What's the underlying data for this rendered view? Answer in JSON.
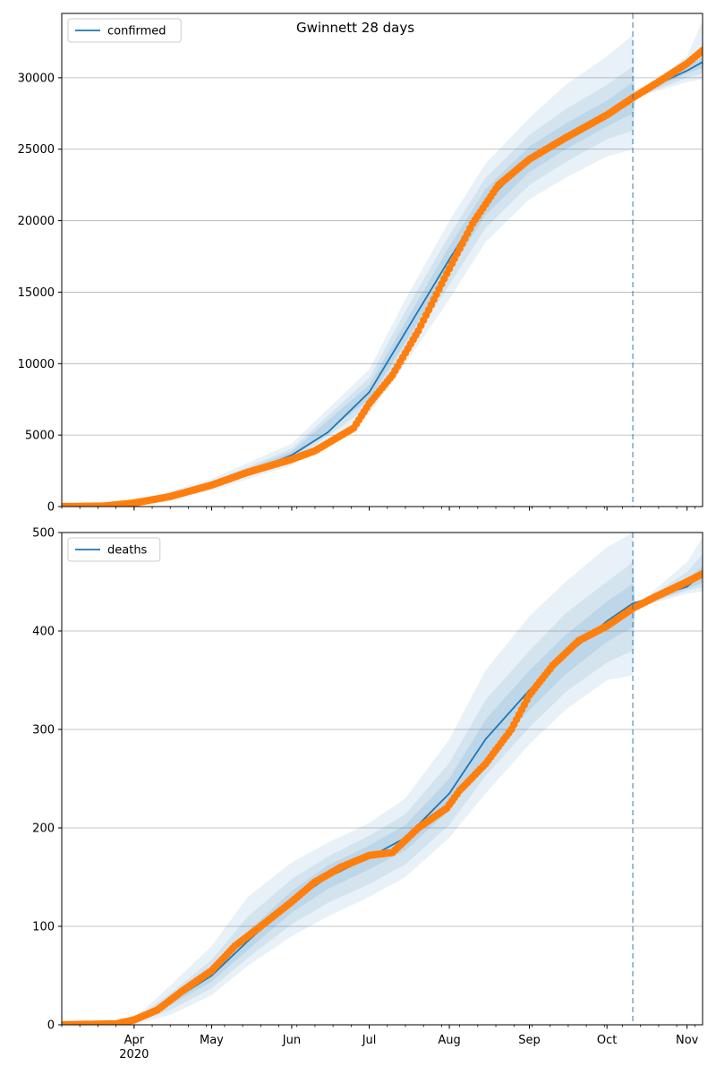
{
  "title": "Gwinnett 28 days",
  "colors": {
    "model": "#1f77b4",
    "observed": "#ff7f0e",
    "band": "#1f77b4",
    "grid": "#b0b0b0",
    "forecast_line": "#1f77b4"
  },
  "chart_data": [
    {
      "type": "line",
      "title": "Gwinnett 28 days",
      "xlabel": "",
      "ylabel": "",
      "x_ticks": [
        "2020-04-01",
        "2020-05-01",
        "2020-06-01",
        "2020-07-01",
        "2020-08-01",
        "2020-09-01",
        "2020-10-01",
        "2020-11-01"
      ],
      "x_tick_labels": [
        "Apr\n2020",
        "May",
        "Jun",
        "Jul",
        "Aug",
        "Sep",
        "Oct",
        "Nov"
      ],
      "xlim": [
        "2020-03-04",
        "2020-11-07"
      ],
      "ylim": [
        0,
        34500
      ],
      "y_ticks": [
        0,
        5000,
        10000,
        15000,
        20000,
        25000,
        30000
      ],
      "grid": "y",
      "legend": "top-left",
      "forecast_start": "2020-10-11",
      "series": [
        {
          "name": "confirmed",
          "kind": "model",
          "points": [
            [
              "2020-03-04",
              0
            ],
            [
              "2020-03-20",
              50
            ],
            [
              "2020-04-01",
              200
            ],
            [
              "2020-04-15",
              700
            ],
            [
              "2020-05-01",
              1500
            ],
            [
              "2020-05-15",
              2400
            ],
            [
              "2020-06-01",
              3600
            ],
            [
              "2020-06-15",
              5200
            ],
            [
              "2020-07-01",
              8000
            ],
            [
              "2020-07-15",
              12200
            ],
            [
              "2020-08-01",
              17300
            ],
            [
              "2020-08-15",
              21300
            ],
            [
              "2020-09-01",
              24300
            ],
            [
              "2020-09-15",
              25900
            ],
            [
              "2020-10-01",
              27500
            ],
            [
              "2020-10-11",
              28600
            ],
            [
              "2020-10-20",
              29500
            ],
            [
              "2020-11-01",
              30500
            ],
            [
              "2020-11-07",
              31100
            ]
          ]
        },
        {
          "name": "",
          "kind": "observed",
          "points": [
            [
              "2020-03-04",
              0
            ],
            [
              "2020-03-20",
              30
            ],
            [
              "2020-04-01",
              250
            ],
            [
              "2020-04-15",
              700
            ],
            [
              "2020-05-01",
              1500
            ],
            [
              "2020-05-15",
              2400
            ],
            [
              "2020-06-01",
              3300
            ],
            [
              "2020-06-10",
              3900
            ],
            [
              "2020-06-25",
              5500
            ],
            [
              "2020-07-01",
              7200
            ],
            [
              "2020-07-10",
              9200
            ],
            [
              "2020-07-20",
              12300
            ],
            [
              "2020-07-31",
              16300
            ],
            [
              "2020-08-10",
              19800
            ],
            [
              "2020-08-20",
              22500
            ],
            [
              "2020-09-01",
              24300
            ],
            [
              "2020-09-15",
              25800
            ],
            [
              "2020-10-01",
              27400
            ],
            [
              "2020-10-11",
              28600
            ],
            [
              "2020-10-20",
              29600
            ],
            [
              "2020-11-01",
              31000
            ],
            [
              "2020-11-07",
              31900
            ]
          ]
        }
      ],
      "bands": [
        {
          "level": "outer",
          "points": [
            [
              "2020-03-04",
              0,
              0
            ],
            [
              "2020-04-01",
              100,
              320
            ],
            [
              "2020-05-01",
              1100,
              1950
            ],
            [
              "2020-06-01",
              2900,
              4400
            ],
            [
              "2020-07-01",
              6500,
              9600
            ],
            [
              "2020-07-15",
              10000,
              14500
            ],
            [
              "2020-08-01",
              14500,
              20000
            ],
            [
              "2020-08-15",
              18500,
              24000
            ],
            [
              "2020-09-01",
              21500,
              27200
            ],
            [
              "2020-09-15",
              23000,
              29500
            ],
            [
              "2020-10-01",
              24500,
              31500
            ],
            [
              "2020-10-11",
              25000,
              33000
            ],
            [
              "2020-10-12",
              28600,
              28700
            ],
            [
              "2020-11-01",
              29700,
              31500
            ],
            [
              "2020-11-07",
              29900,
              34000
            ]
          ]
        },
        {
          "level": "middle",
          "points": [
            [
              "2020-03-04",
              0,
              0
            ],
            [
              "2020-04-01",
              140,
              270
            ],
            [
              "2020-05-01",
              1250,
              1750
            ],
            [
              "2020-06-01",
              3150,
              4050
            ],
            [
              "2020-07-01",
              7000,
              9000
            ],
            [
              "2020-07-15",
              10800,
              13700
            ],
            [
              "2020-08-01",
              15500,
              19000
            ],
            [
              "2020-08-15",
              19500,
              23000
            ],
            [
              "2020-09-01",
              22500,
              26000
            ],
            [
              "2020-09-15",
              24100,
              27800
            ],
            [
              "2020-10-01",
              25700,
              29500
            ],
            [
              "2020-10-11",
              26300,
              30800
            ],
            [
              "2020-10-12",
              28600,
              28700
            ],
            [
              "2020-11-01",
              30000,
              31000
            ],
            [
              "2020-11-07",
              30300,
              32000
            ]
          ]
        },
        {
          "level": "inner",
          "points": [
            [
              "2020-03-04",
              0,
              0
            ],
            [
              "2020-04-01",
              170,
              230
            ],
            [
              "2020-05-01",
              1380,
              1620
            ],
            [
              "2020-06-01",
              3350,
              3850
            ],
            [
              "2020-07-01",
              7500,
              8500
            ],
            [
              "2020-07-15",
              11500,
              12900
            ],
            [
              "2020-08-01",
              16400,
              18200
            ],
            [
              "2020-08-15",
              20400,
              22200
            ],
            [
              "2020-09-01",
              23400,
              25200
            ],
            [
              "2020-09-15",
              25000,
              26800
            ],
            [
              "2020-10-01",
              26600,
              28400
            ],
            [
              "2020-10-11",
              27500,
              29700
            ],
            [
              "2020-10-12",
              28600,
              28700
            ],
            [
              "2020-11-01",
              30300,
              30700
            ],
            [
              "2020-11-07",
              30700,
              31500
            ]
          ]
        }
      ]
    },
    {
      "type": "line",
      "title": "",
      "xlabel": "",
      "ylabel": "",
      "x_ticks": [
        "2020-04-01",
        "2020-05-01",
        "2020-06-01",
        "2020-07-01",
        "2020-08-01",
        "2020-09-01",
        "2020-10-01",
        "2020-11-01"
      ],
      "x_tick_labels": [
        "Apr\n2020",
        "May",
        "Jun",
        "Jul",
        "Aug",
        "Sep",
        "Oct",
        "Nov"
      ],
      "xlim": [
        "2020-03-04",
        "2020-11-07"
      ],
      "ylim": [
        0,
        500
      ],
      "y_ticks": [
        0,
        100,
        200,
        300,
        400,
        500
      ],
      "grid": "y",
      "legend": "top-left",
      "forecast_start": "2020-10-11",
      "series": [
        {
          "name": "deaths",
          "kind": "model",
          "points": [
            [
              "2020-03-04",
              0
            ],
            [
              "2020-04-01",
              3
            ],
            [
              "2020-04-10",
              15
            ],
            [
              "2020-05-01",
              50
            ],
            [
              "2020-05-15",
              85
            ],
            [
              "2020-06-01",
              125
            ],
            [
              "2020-06-15",
              150
            ],
            [
              "2020-07-01",
              170
            ],
            [
              "2020-07-15",
              190
            ],
            [
              "2020-08-01",
              235
            ],
            [
              "2020-08-15",
              290
            ],
            [
              "2020-09-01",
              340
            ],
            [
              "2020-09-15",
              375
            ],
            [
              "2020-10-01",
              410
            ],
            [
              "2020-10-11",
              428
            ],
            [
              "2020-11-01",
              445
            ],
            [
              "2020-11-07",
              458
            ]
          ]
        },
        {
          "name": "",
          "kind": "observed",
          "points": [
            [
              "2020-03-04",
              0
            ],
            [
              "2020-03-25",
              1
            ],
            [
              "2020-04-01",
              5
            ],
            [
              "2020-04-10",
              15
            ],
            [
              "2020-04-20",
              35
            ],
            [
              "2020-05-01",
              55
            ],
            [
              "2020-05-10",
              80
            ],
            [
              "2020-05-20",
              100
            ],
            [
              "2020-06-01",
              125
            ],
            [
              "2020-06-10",
              145
            ],
            [
              "2020-06-20",
              160
            ],
            [
              "2020-07-01",
              172
            ],
            [
              "2020-07-10",
              175
            ],
            [
              "2020-07-20",
              200
            ],
            [
              "2020-07-31",
              220
            ],
            [
              "2020-08-05",
              238
            ],
            [
              "2020-08-15",
              265
            ],
            [
              "2020-08-25",
              300
            ],
            [
              "2020-09-01",
              335
            ],
            [
              "2020-09-10",
              365
            ],
            [
              "2020-09-20",
              390
            ],
            [
              "2020-10-01",
              405
            ],
            [
              "2020-10-11",
              423
            ],
            [
              "2020-10-20",
              435
            ],
            [
              "2020-11-01",
              450
            ],
            [
              "2020-11-07",
              458
            ]
          ]
        }
      ],
      "bands": [
        {
          "level": "outer",
          "points": [
            [
              "2020-03-04",
              0,
              0
            ],
            [
              "2020-04-01",
              0,
              6
            ],
            [
              "2020-04-15",
              10,
              40
            ],
            [
              "2020-05-01",
              30,
              80
            ],
            [
              "2020-05-15",
              60,
              130
            ],
            [
              "2020-06-01",
              90,
              165
            ],
            [
              "2020-06-15",
              110,
              185
            ],
            [
              "2020-07-01",
              130,
              205
            ],
            [
              "2020-07-15",
              150,
              230
            ],
            [
              "2020-08-01",
              190,
              290
            ],
            [
              "2020-08-15",
              235,
              360
            ],
            [
              "2020-09-01",
              285,
              415
            ],
            [
              "2020-09-15",
              320,
              450
            ],
            [
              "2020-10-01",
              350,
              485
            ],
            [
              "2020-10-11",
              355,
              500
            ],
            [
              "2020-10-12",
              423,
              425
            ],
            [
              "2020-11-01",
              438,
              470
            ],
            [
              "2020-11-07",
              440,
              495
            ]
          ]
        },
        {
          "level": "middle",
          "points": [
            [
              "2020-03-04",
              0,
              0
            ],
            [
              "2020-04-01",
              1,
              5
            ],
            [
              "2020-04-15",
              15,
              32
            ],
            [
              "2020-05-01",
              37,
              66
            ],
            [
              "2020-05-15",
              68,
              110
            ],
            [
              "2020-06-01",
              102,
              148
            ],
            [
              "2020-06-15",
              124,
              171
            ],
            [
              "2020-07-01",
              143,
              192
            ],
            [
              "2020-07-15",
              163,
              214
            ],
            [
              "2020-08-01",
              203,
              266
            ],
            [
              "2020-08-15",
              253,
              330
            ],
            [
              "2020-09-01",
              302,
              380
            ],
            [
              "2020-09-15",
              338,
              418
            ],
            [
              "2020-10-01",
              368,
              450
            ],
            [
              "2020-10-11",
              380,
              470
            ],
            [
              "2020-10-12",
              423,
              425
            ],
            [
              "2020-11-01",
              441,
              460
            ],
            [
              "2020-11-07",
              445,
              478
            ]
          ]
        },
        {
          "level": "inner",
          "points": [
            [
              "2020-03-04",
              0,
              0
            ],
            [
              "2020-04-01",
              2,
              4
            ],
            [
              "2020-04-15",
              20,
              26
            ],
            [
              "2020-05-01",
              44,
              58
            ],
            [
              "2020-05-15",
              76,
              95
            ],
            [
              "2020-06-01",
              114,
              136
            ],
            [
              "2020-06-15",
              138,
              162
            ],
            [
              "2020-07-01",
              158,
              182
            ],
            [
              "2020-07-15",
              177,
              203
            ],
            [
              "2020-08-01",
              218,
              250
            ],
            [
              "2020-08-15",
              270,
              310
            ],
            [
              "2020-09-01",
              320,
              360
            ],
            [
              "2020-09-15",
              356,
              396
            ],
            [
              "2020-10-01",
              389,
              430
            ],
            [
              "2020-10-11",
              404,
              448
            ],
            [
              "2020-10-12",
              423,
              425
            ],
            [
              "2020-11-01",
              443,
              452
            ],
            [
              "2020-11-07",
              449,
              466
            ]
          ]
        }
      ]
    }
  ]
}
